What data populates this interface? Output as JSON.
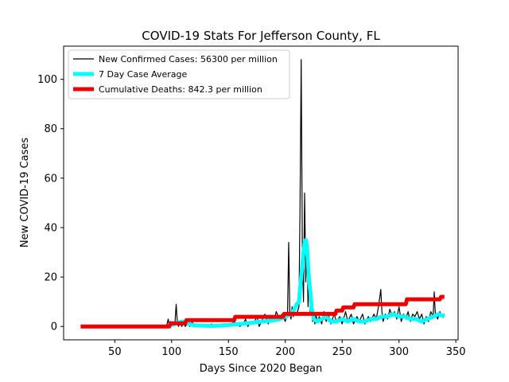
{
  "chart_data": {
    "type": "line",
    "title": "COVID-19 Stats For Jefferson County, FL",
    "xlabel": "Days Since 2020 Began",
    "ylabel": "New COVID-19 Cases",
    "xlim": [
      5,
      352
    ],
    "ylim": [
      -5.4,
      113.4
    ],
    "xticks": [
      50,
      100,
      150,
      200,
      250,
      300,
      350
    ],
    "yticks": [
      0,
      20,
      40,
      60,
      80,
      100
    ],
    "legend_position": "upper-left",
    "grid": false,
    "series": [
      {
        "name": "New Confirmed Cases: 56300 per million",
        "color": "#000000",
        "style": "thin-line",
        "x": [
          20,
          30,
          40,
          50,
          60,
          70,
          80,
          90,
          95,
          96,
          97,
          98,
          99,
          100,
          101,
          102,
          103,
          104,
          105,
          106,
          107,
          108,
          109,
          110,
          112,
          114,
          116,
          118,
          120,
          125,
          130,
          135,
          140,
          145,
          150,
          155,
          160,
          163,
          165,
          167,
          170,
          172,
          175,
          177,
          180,
          182,
          185,
          187,
          190,
          192,
          195,
          197,
          200,
          202,
          203,
          204,
          205,
          206,
          207,
          208,
          210,
          212,
          213,
          214,
          215,
          216,
          217,
          218,
          219,
          220,
          221,
          222,
          223,
          224,
          225,
          226,
          227,
          228,
          230,
          232,
          234,
          236,
          238,
          240,
          243,
          245,
          248,
          250,
          253,
          255,
          258,
          260,
          263,
          265,
          268,
          270,
          273,
          275,
          278,
          280,
          282,
          284,
          285,
          286,
          288,
          290,
          292,
          294,
          296,
          298,
          300,
          302,
          304,
          306,
          308,
          310,
          312,
          314,
          316,
          318,
          320,
          322,
          324,
          326,
          328,
          330,
          331,
          332,
          334,
          336,
          338,
          340
        ],
        "y": [
          0,
          0,
          0,
          0,
          0,
          0,
          0,
          0,
          0,
          1,
          3,
          0,
          2,
          1,
          0,
          1,
          2,
          9,
          2,
          0,
          1,
          1,
          0,
          2,
          0,
          1,
          0,
          2,
          0,
          1,
          0,
          1,
          0,
          1,
          0,
          2,
          0,
          1,
          3,
          0,
          2,
          1,
          4,
          0,
          3,
          5,
          1,
          4,
          2,
          6,
          3,
          5,
          2,
          6,
          34,
          5,
          3,
          8,
          4,
          6,
          5,
          8,
          50,
          108,
          30,
          10,
          54,
          18,
          35,
          8,
          20,
          5,
          12,
          2,
          4,
          1,
          5,
          2,
          4,
          1,
          6,
          2,
          5,
          1,
          5,
          2,
          4,
          1,
          6,
          2,
          5,
          1,
          4,
          2,
          5,
          1,
          4,
          2,
          5,
          3,
          8,
          15,
          6,
          2,
          5,
          3,
          7,
          4,
          6,
          3,
          8,
          2,
          5,
          3,
          6,
          2,
          5,
          4,
          6,
          3,
          5,
          1,
          4,
          2,
          6,
          4,
          14,
          5,
          3,
          6,
          4,
          5
        ]
      },
      {
        "name": "7 Day Case Average",
        "color": "#00ffff",
        "style": "thick-line",
        "x": [
          100,
          105,
          110,
          115,
          120,
          125,
          130,
          135,
          140,
          145,
          150,
          155,
          160,
          165,
          170,
          175,
          180,
          185,
          190,
          195,
          200,
          205,
          208,
          210,
          212,
          213,
          214,
          215,
          216,
          217,
          218,
          219,
          220,
          221,
          222,
          223,
          225,
          228,
          232,
          236,
          240,
          245,
          250,
          255,
          260,
          265,
          270,
          275,
          280,
          285,
          290,
          295,
          300,
          305,
          310,
          315,
          320,
          325,
          330,
          335,
          340
        ],
        "y": [
          0.5,
          1.5,
          2,
          1,
          0.5,
          0.4,
          0.3,
          0.2,
          0.3,
          0.5,
          0.6,
          0.8,
          1,
          1.2,
          1.5,
          1.8,
          2,
          2.2,
          2.5,
          3,
          4,
          5,
          7,
          9,
          10,
          15,
          20,
          25,
          30,
          34,
          35,
          33,
          25,
          18,
          14,
          8,
          3,
          2,
          3,
          4,
          2,
          2,
          3,
          2,
          3,
          2,
          2,
          3,
          3,
          4,
          4,
          5,
          4,
          4,
          3,
          3,
          2,
          3,
          4,
          5,
          4
        ]
      },
      {
        "name": "Cumulative Deaths: 842.3 per million",
        "color": "#ee0000",
        "style": "thick-step",
        "x": [
          20,
          98,
          99,
          112,
          113,
          155,
          156,
          198,
          199,
          244,
          245,
          250,
          251,
          260,
          261,
          268,
          269,
          306,
          307,
          336,
          337,
          340
        ],
        "y": [
          0,
          0,
          1.3,
          1.3,
          2.6,
          2.6,
          3.9,
          3.9,
          5.1,
          5.1,
          6.4,
          6.4,
          7.7,
          7.7,
          9,
          9,
          9,
          9,
          11,
          11,
          12,
          12
        ]
      }
    ]
  }
}
